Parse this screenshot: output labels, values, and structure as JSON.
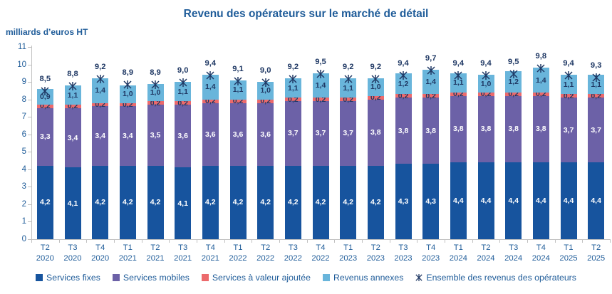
{
  "chart_data": {
    "type": "bar",
    "stacked": true,
    "title": "Revenu des opérateurs sur le marché de détail",
    "ylabel": "milliards d’euros HT",
    "xlabel": "",
    "ylim": [
      0,
      11
    ],
    "y_tick_step": 1,
    "grid": false,
    "legend_position": "bottom",
    "decimal_separator": ",",
    "categories": [
      "T2 2020",
      "T3 2020",
      "T4 2020",
      "T1 2021",
      "T2 2021",
      "T3 2021",
      "T4 2021",
      "T1 2022",
      "T2 2022",
      "T3 2022",
      "T4 2022",
      "T1 2023",
      "T2 2023",
      "T3 2023",
      "T4 2023",
      "T1 2024",
      "T2 2024",
      "T3 2024",
      "T4 2024",
      "T1 2025",
      "T2 2025"
    ],
    "series": [
      {
        "name": "Services fixes",
        "color": "#17549E",
        "label_color": "#FFFFFF",
        "values": [
          4.2,
          4.1,
          4.2,
          4.2,
          4.2,
          4.1,
          4.2,
          4.2,
          4.2,
          4.2,
          4.2,
          4.2,
          4.2,
          4.3,
          4.3,
          4.4,
          4.4,
          4.4,
          4.4,
          4.4,
          4.4
        ]
      },
      {
        "name": "Services mobiles",
        "color": "#6C61A7",
        "label_color": "#FFFFFF",
        "values": [
          3.3,
          3.4,
          3.4,
          3.4,
          3.5,
          3.6,
          3.6,
          3.6,
          3.6,
          3.7,
          3.7,
          3.7,
          3.8,
          3.8,
          3.8,
          3.8,
          3.8,
          3.8,
          3.8,
          3.7,
          3.7
        ]
      },
      {
        "name": "Services à valeur ajoutée",
        "color": "#EC6A6C",
        "label_color": "#1F3864",
        "values": [
          0.2,
          0.2,
          0.2,
          0.2,
          0.2,
          0.2,
          0.2,
          0.2,
          0.2,
          0.2,
          0.2,
          0.2,
          0.2,
          0.2,
          0.2,
          0.2,
          0.2,
          0.2,
          0.2,
          0.2,
          0.2
        ]
      },
      {
        "name": "Revenus annexes",
        "color": "#69B5DB",
        "label_color": "#1F3864",
        "values": [
          0.9,
          1.1,
          1.4,
          1.0,
          1.0,
          1.1,
          1.4,
          1.1,
          1.0,
          1.1,
          1.4,
          1.1,
          1.0,
          1.2,
          1.4,
          1.1,
          1.0,
          1.2,
          1.4,
          1.1,
          1.1
        ]
      }
    ],
    "total_series": {
      "name": "Ensemble des revenus des opérateurs",
      "marker": "star-x",
      "color": "#1F3864",
      "values": [
        8.5,
        8.8,
        9.2,
        8.9,
        8.9,
        9.0,
        9.4,
        9.1,
        9.0,
        9.2,
        9.5,
        9.2,
        9.2,
        9.4,
        9.7,
        9.4,
        9.4,
        9.5,
        9.8,
        9.4,
        9.3
      ]
    }
  },
  "style": {
    "axis_text_color": "#1F5C99",
    "axis_line_color": "#C1C1C1",
    "title_color": "#1F5C99",
    "background": "#FFFFFF"
  }
}
